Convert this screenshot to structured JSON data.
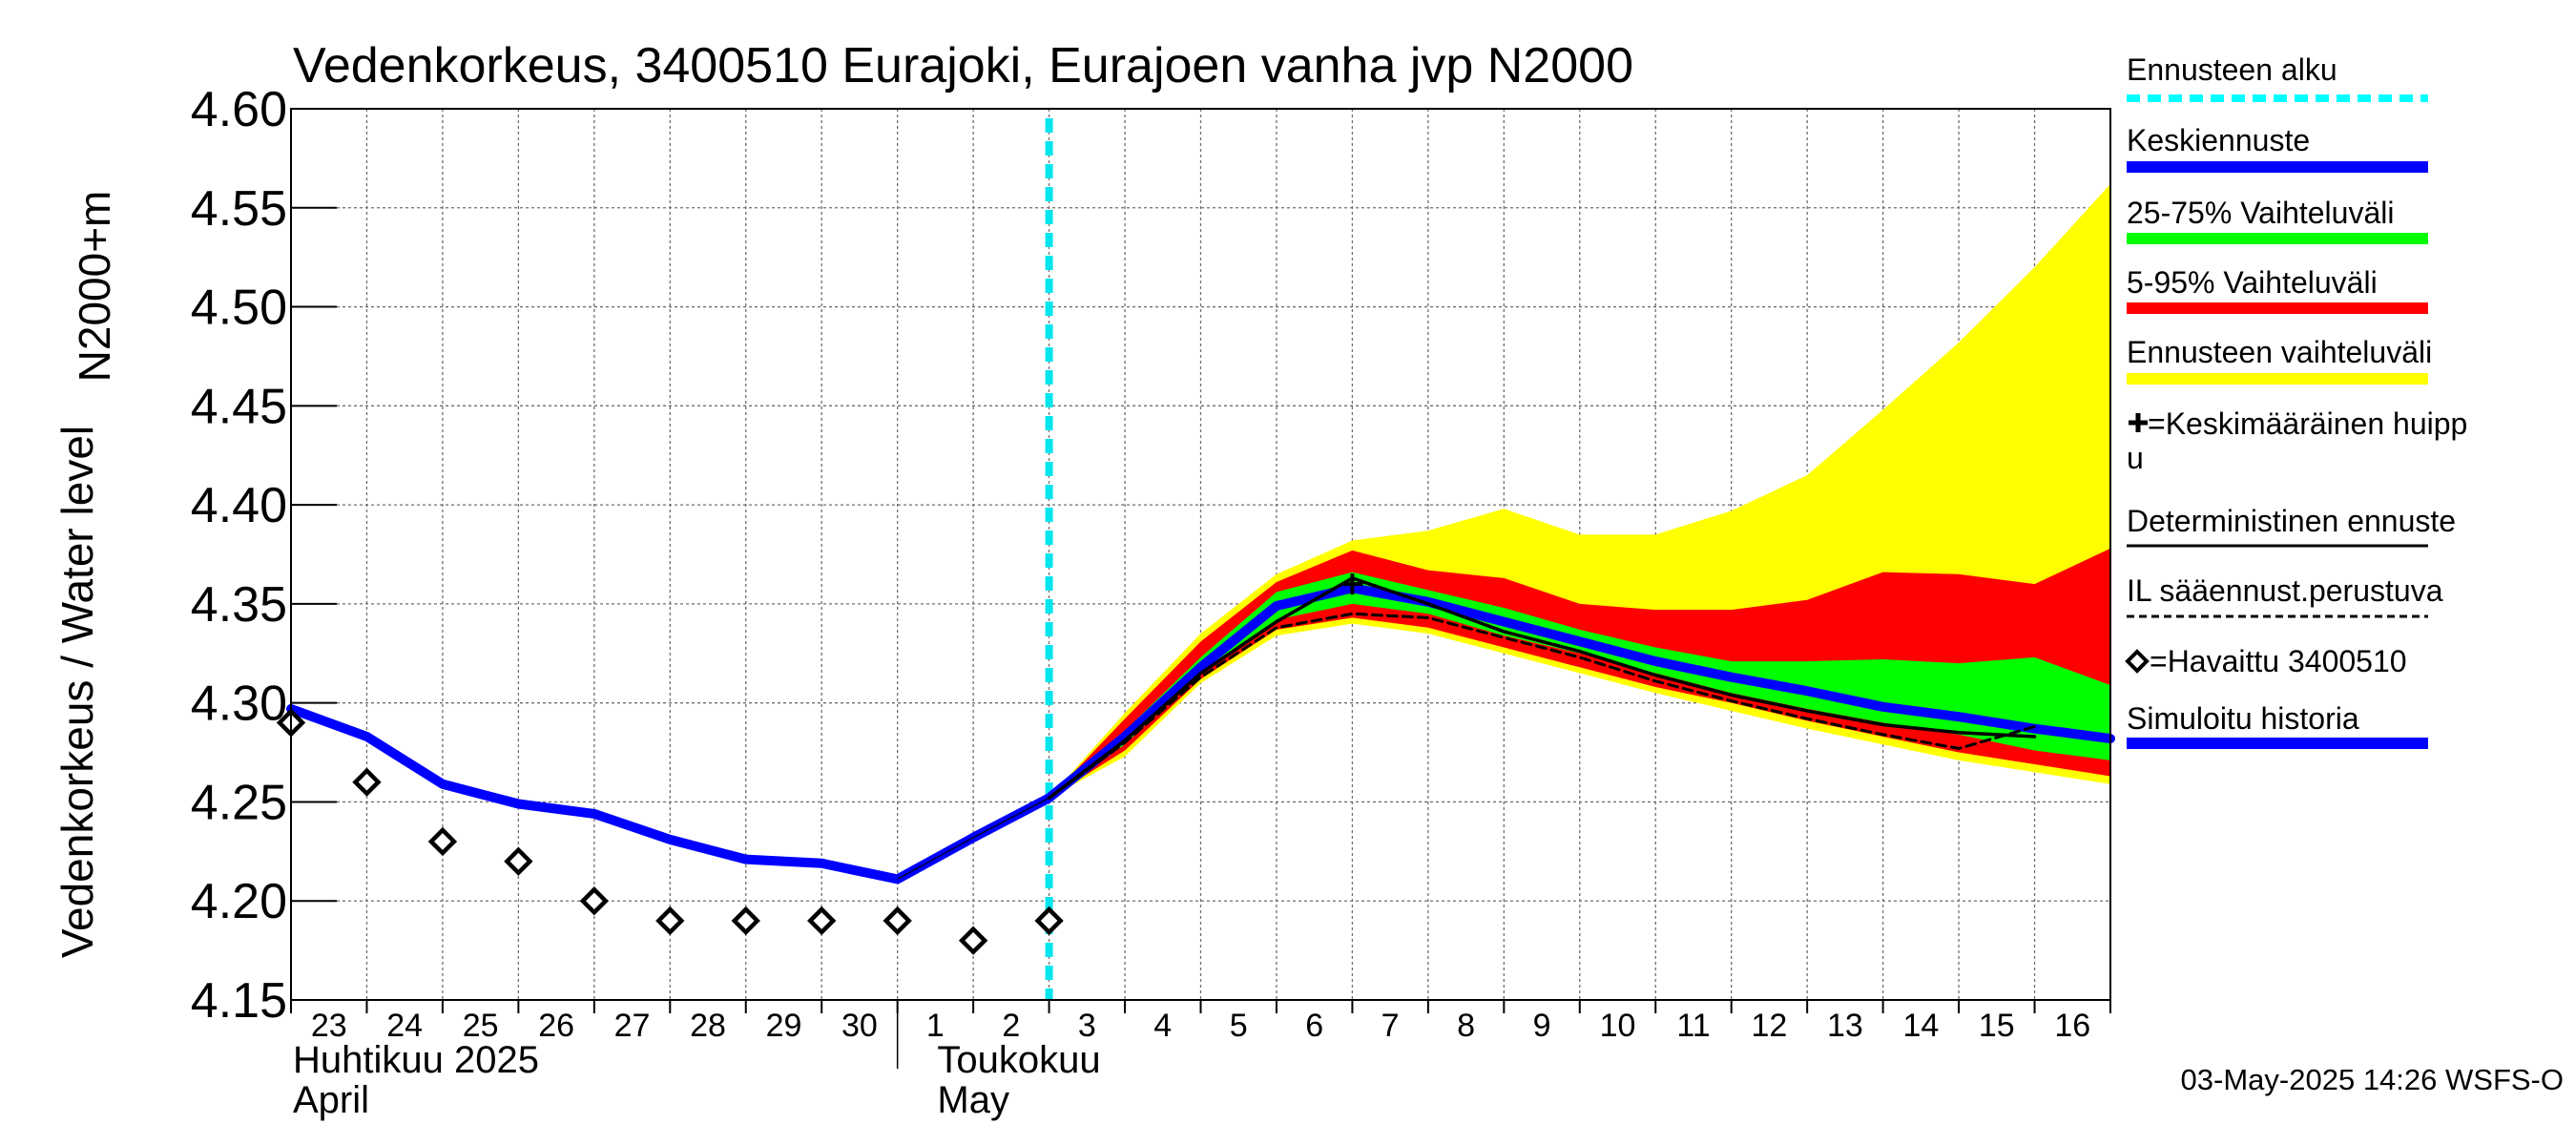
{
  "chart_data": {
    "type": "area",
    "title": "Vedenkorkeus, 3400510 Eurajoki, Eurajoen vanha jvp N2000",
    "ylabel_top": "N2000+m",
    "ylabel_bottom": "Vedenkorkeus / Water level",
    "ylim": [
      4.15,
      4.6
    ],
    "yticks": [
      4.15,
      4.2,
      4.25,
      4.3,
      4.35,
      4.4,
      4.45,
      4.5,
      4.55,
      4.6
    ],
    "ytick_labels": [
      "4.15",
      "4.20",
      "4.25",
      "4.30",
      "4.35",
      "4.40",
      "4.45",
      "4.50",
      "4.55",
      "4.60"
    ],
    "x_range_days": [
      0,
      24
    ],
    "day_labels": [
      "23",
      "24",
      "25",
      "26",
      "27",
      "28",
      "29",
      "30",
      "1",
      "2",
      "3",
      "4",
      "5",
      "6",
      "7",
      "8",
      "9",
      "10",
      "11",
      "12",
      "13",
      "14",
      "15",
      "16"
    ],
    "month_labels": [
      {
        "fi": "Huhtikuu  2025",
        "en": "April",
        "start_day": 0
      },
      {
        "fi": "Toukokuu",
        "en": "May",
        "start_day": 8.5
      }
    ],
    "forecast_start": 10,
    "series": [
      {
        "name": "Simuloitu historia",
        "color": "#0000ff",
        "x": [
          0,
          1,
          2,
          3,
          4,
          5,
          6,
          7,
          8,
          9,
          10
        ],
        "y": [
          4.297,
          4.283,
          4.259,
          4.249,
          4.244,
          4.231,
          4.221,
          4.219,
          4.211,
          4.232,
          4.252
        ]
      },
      {
        "name": "Keskiennuste",
        "color": "#0000ff",
        "x": [
          10,
          11,
          12,
          13,
          14,
          15,
          16,
          17,
          18,
          19,
          20,
          21,
          22,
          23,
          24
        ],
        "y": [
          4.252,
          4.283,
          4.318,
          4.349,
          4.358,
          4.351,
          4.341,
          4.331,
          4.321,
          4.313,
          4.306,
          4.298,
          4.293,
          4.287,
          4.282
        ]
      },
      {
        "name": "Deterministinen ennuste",
        "color": "#000000",
        "x": [
          10,
          11,
          12,
          13,
          14,
          15,
          16,
          17,
          18,
          19,
          20,
          21,
          22,
          23
        ],
        "y": [
          4.252,
          4.281,
          4.315,
          4.341,
          4.363,
          4.35,
          4.336,
          4.326,
          4.314,
          4.304,
          4.296,
          4.289,
          4.285,
          4.283
        ]
      },
      {
        "name": "IL sääennust.perustuva",
        "color": "#000000",
        "dash": true,
        "x": [
          10,
          11,
          12,
          13,
          14,
          15,
          16,
          17,
          18,
          19,
          20,
          21,
          22,
          23
        ],
        "y": [
          4.252,
          4.28,
          4.313,
          4.338,
          4.345,
          4.343,
          4.333,
          4.323,
          4.311,
          4.301,
          4.292,
          4.284,
          4.277,
          4.288
        ]
      }
    ],
    "bands": [
      {
        "name": "Ennusteen vaihteluväli",
        "color": "#ffff00",
        "x": [
          10,
          11,
          12,
          13,
          14,
          15,
          16,
          17,
          18,
          19,
          20,
          21,
          22,
          23,
          24
        ],
        "upper": [
          4.252,
          4.295,
          4.335,
          4.365,
          4.382,
          4.387,
          4.398,
          4.385,
          4.385,
          4.397,
          4.415,
          4.448,
          4.482,
          4.52,
          4.562
        ],
        "lower": [
          4.252,
          4.273,
          4.31,
          4.334,
          4.34,
          4.335,
          4.325,
          4.315,
          4.305,
          4.296,
          4.287,
          4.279,
          4.271,
          4.265,
          4.259
        ]
      },
      {
        "name": "5-95% Vaihteluväli",
        "color": "#ff0000",
        "x": [
          10,
          11,
          12,
          13,
          14,
          15,
          16,
          17,
          18,
          19,
          20,
          21,
          22,
          23,
          24
        ],
        "upper": [
          4.252,
          4.292,
          4.331,
          4.361,
          4.377,
          4.367,
          4.363,
          4.35,
          4.347,
          4.347,
          4.352,
          4.366,
          4.365,
          4.36,
          4.378
        ],
        "lower": [
          4.252,
          4.276,
          4.312,
          4.337,
          4.343,
          4.338,
          4.328,
          4.318,
          4.308,
          4.3,
          4.291,
          4.283,
          4.275,
          4.269,
          4.263
        ]
      },
      {
        "name": "25-75% Vaihteluväli",
        "color": "#00ff00",
        "x": [
          10,
          11,
          12,
          13,
          14,
          15,
          16,
          17,
          18,
          19,
          20,
          21,
          22,
          23,
          24
        ],
        "upper": [
          4.252,
          4.286,
          4.323,
          4.356,
          4.366,
          4.357,
          4.348,
          4.337,
          4.328,
          4.321,
          4.321,
          4.322,
          4.32,
          4.323,
          4.309
        ],
        "lower": [
          4.252,
          4.279,
          4.316,
          4.342,
          4.35,
          4.345,
          4.334,
          4.325,
          4.315,
          4.305,
          4.297,
          4.29,
          4.284,
          4.276,
          4.271
        ]
      }
    ],
    "peak_marker": {
      "name": "Keskimääräinen huippu",
      "x": 14,
      "y": 4.36
    },
    "observed": {
      "name": "Havaittu 3400510",
      "x": [
        0,
        1,
        2,
        3,
        4,
        5,
        6,
        7,
        8,
        9,
        10
      ],
      "y": [
        4.29,
        4.26,
        4.23,
        4.22,
        4.2,
        4.19,
        4.19,
        4.19,
        4.19,
        4.18,
        4.19
      ]
    },
    "legend": [
      {
        "key": "forecast_start",
        "label": "Ennusteen alku",
        "color": "#00ffff"
      },
      {
        "key": "mean",
        "label": "Keskiennuste",
        "color": "#0000ff"
      },
      {
        "key": "p25_75",
        "label": "25-75% Vaihteluväli",
        "color": "#00ff00"
      },
      {
        "key": "p5_95",
        "label": "5-95% Vaihteluväli",
        "color": "#ff0000"
      },
      {
        "key": "range",
        "label": "Ennusteen vaihteluväli",
        "color": "#ffff00"
      },
      {
        "key": "peak",
        "label": "=Keskimääräinen huipp",
        "label2": "u",
        "color": "#000000"
      },
      {
        "key": "determ",
        "label": "Deterministinen ennuste",
        "color": "#000000"
      },
      {
        "key": "il",
        "label": "IL sääennust.perustuva",
        "color": "#000000"
      },
      {
        "key": "obs",
        "label": "=Havaittu 3400510",
        "color": "#000000"
      },
      {
        "key": "sim",
        "label": "Simuloitu historia",
        "color": "#0000ff"
      }
    ],
    "footer": "03-May-2025 14:26 WSFS-O"
  }
}
